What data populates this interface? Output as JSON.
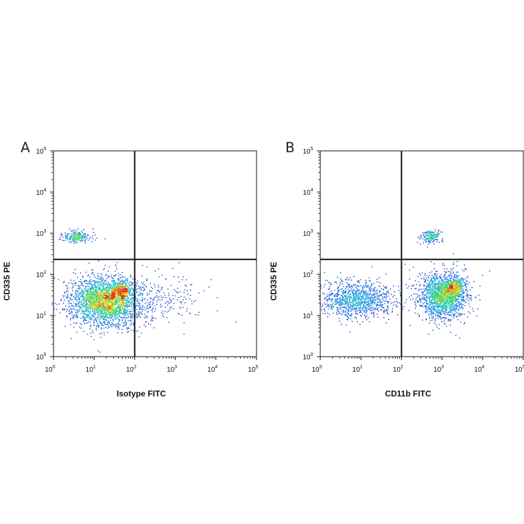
{
  "chart_data": [
    {
      "type": "scatter",
      "subtype": "flow-cytometry-density-dot-plot",
      "panel_label": "A",
      "xlabel": "Isotype FITC",
      "ylabel": "CD335 PE",
      "x_scale": "log",
      "y_scale": "log",
      "xlim": [
        1,
        100000
      ],
      "ylim": [
        1,
        100000
      ],
      "x_tick_labels": [
        "10",
        "10",
        "10",
        "10",
        "10",
        "10"
      ],
      "x_tick_exponents": [
        "0",
        "1",
        "2",
        "3",
        "4",
        "5"
      ],
      "y_tick_labels": [
        "10",
        "10",
        "10",
        "10",
        "10",
        "10"
      ],
      "y_tick_exponents": [
        "0",
        "1",
        "2",
        "3",
        "4",
        "5"
      ],
      "quadrant_gate": {
        "x": 100,
        "y": 230
      },
      "populations": [
        {
          "cx_log": 1.25,
          "cy_log": 1.35,
          "sx": 0.42,
          "sy": 0.3,
          "n": 2600
        },
        {
          "cx_log": 1.65,
          "cy_log": 1.6,
          "sx": 0.12,
          "sy": 0.12,
          "n": 350
        },
        {
          "cx_log": 0.55,
          "cy_log": 2.92,
          "sx": 0.18,
          "sy": 0.07,
          "n": 220
        },
        {
          "cx_log": 2.6,
          "cy_log": 1.4,
          "sx": 0.55,
          "sy": 0.3,
          "n": 260
        }
      ],
      "grid": false
    },
    {
      "type": "scatter",
      "subtype": "flow-cytometry-density-dot-plot",
      "panel_label": "B",
      "xlabel": "CD11b FITC",
      "ylabel": "CD335 PE",
      "x_scale": "log",
      "y_scale": "log",
      "xlim": [
        1,
        100000
      ],
      "ylim": [
        1,
        100000
      ],
      "x_tick_labels": [
        "10",
        "10",
        "10",
        "10",
        "10",
        "10"
      ],
      "x_tick_exponents": [
        "0",
        "1",
        "2",
        "3",
        "4",
        "5"
      ],
      "y_tick_labels": [
        "10",
        "10",
        "10",
        "10",
        "10",
        "10"
      ],
      "y_tick_exponents": [
        "0",
        "1",
        "2",
        "3",
        "4",
        "5"
      ],
      "quadrant_gate": {
        "x": 100,
        "y": 230
      },
      "populations": [
        {
          "cx_log": 0.9,
          "cy_log": 1.4,
          "sx": 0.45,
          "sy": 0.22,
          "n": 1100
        },
        {
          "cx_log": 3.0,
          "cy_log": 1.5,
          "sx": 0.3,
          "sy": 0.28,
          "n": 1800
        },
        {
          "cx_log": 3.3,
          "cy_log": 1.7,
          "sx": 0.1,
          "sy": 0.12,
          "n": 300
        },
        {
          "cx_log": 2.72,
          "cy_log": 2.92,
          "sx": 0.12,
          "sy": 0.08,
          "n": 180
        }
      ],
      "grid": false
    }
  ]
}
